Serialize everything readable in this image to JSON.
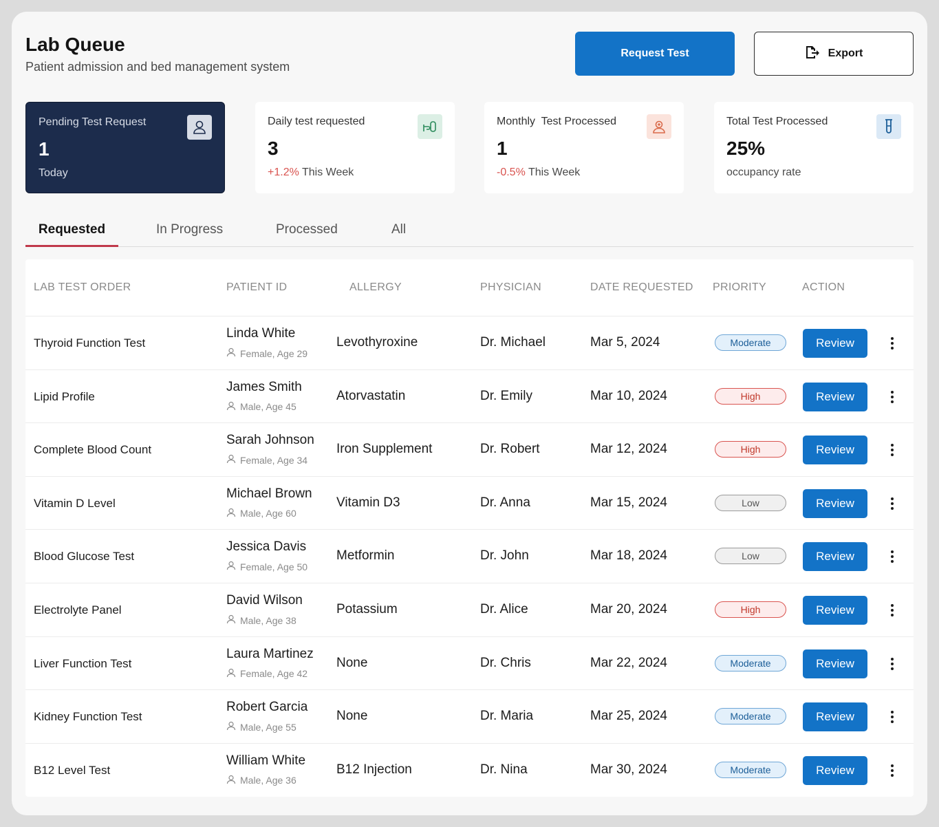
{
  "header": {
    "title": "Lab Queue",
    "subtitle": "Patient admission and bed management system",
    "request_label": "Request Test",
    "export_label": "Export"
  },
  "cards": [
    {
      "label": "Pending Test Request",
      "value": "1",
      "sub": "Today",
      "icon": "user-icon"
    },
    {
      "label": "Daily test requested",
      "value": "3",
      "pct": "+1.2%",
      "sub": " This Week",
      "icon": "hand-test-icon",
      "icon_bg": "#dcefe5",
      "icon_color": "#2a8a5a"
    },
    {
      "label": "Monthly  Test Processed",
      "value": "1",
      "pct": "-0.5%",
      "sub": " This Week",
      "icon": "nurse-icon",
      "icon_bg": "#fbe3dc",
      "icon_color": "#d96a4a"
    },
    {
      "label": "Total Test Processed",
      "value": "25%",
      "sub": "occupancy rate",
      "icon": "test-tube-icon",
      "icon_bg": "#dbe9f6",
      "icon_color": "#1c5e98"
    }
  ],
  "tabs": [
    "Requested",
    "In Progress",
    "Processed",
    "All"
  ],
  "table": {
    "headers": [
      "LAB TEST ORDER",
      "PATIENT ID",
      "ALLERGY",
      "PHYSICIAN",
      "DATE REQUESTED",
      "PRIORITY",
      "ACTION"
    ],
    "review_label": "Review",
    "rows": [
      {
        "test": "Thyroid Function Test",
        "name": "Linda White",
        "meta": "Female, Age 29",
        "allergy": "Levothyroxine",
        "physician": "Dr. Michael",
        "date": "Mar 5, 2024",
        "priority": "Moderate"
      },
      {
        "test": "Lipid Profile",
        "name": "James Smith",
        "meta": "Male, Age 45",
        "allergy": "Atorvastatin",
        "physician": "Dr. Emily",
        "date": "Mar 10, 2024",
        "priority": "High"
      },
      {
        "test": "Complete Blood Count",
        "name": "Sarah Johnson",
        "meta": "Female, Age 34",
        "allergy": "Iron Supplement",
        "physician": "Dr. Robert",
        "date": "Mar 12, 2024",
        "priority": "High"
      },
      {
        "test": "Vitamin D Level",
        "name": "Michael Brown",
        "meta": "Male, Age 60",
        "allergy": "Vitamin D3",
        "physician": "Dr. Anna",
        "date": "Mar 15, 2024",
        "priority": "Low"
      },
      {
        "test": "Blood Glucose Test",
        "name": "Jessica Davis",
        "meta": "Female, Age 50",
        "allergy": "Metformin",
        "physician": "Dr. John",
        "date": "Mar 18, 2024",
        "priority": "Low"
      },
      {
        "test": "Electrolyte Panel",
        "name": "David Wilson",
        "meta": "Male, Age 38",
        "allergy": "Potassium",
        "physician": "Dr. Alice",
        "date": "Mar 20, 2024",
        "priority": "High"
      },
      {
        "test": "Liver Function Test",
        "name": "Laura Martinez",
        "meta": "Female, Age 42",
        "allergy": "None",
        "physician": "Dr. Chris",
        "date": "Mar 22, 2024",
        "priority": "Moderate"
      },
      {
        "test": "Kidney Function Test",
        "name": "Robert Garcia",
        "meta": "Male, Age 55",
        "allergy": "None",
        "physician": "Dr. Maria",
        "date": "Mar 25, 2024",
        "priority": "Moderate"
      },
      {
        "test": "B12 Level Test",
        "name": "William White",
        "meta": "Male, Age 36",
        "allergy": "B12 Injection",
        "physician": "Dr. Nina",
        "date": "Mar 30, 2024",
        "priority": "Moderate"
      }
    ]
  }
}
